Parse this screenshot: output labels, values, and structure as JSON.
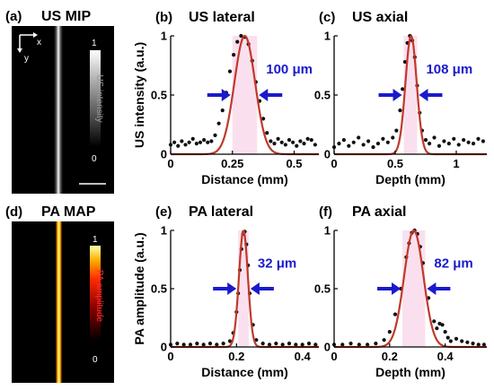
{
  "panels": {
    "a": {
      "tag": "(a)",
      "title": "US MIP",
      "axis_x": "x",
      "axis_y": "y",
      "colorbar_label": "US intensity",
      "colorbar_max": "1",
      "colorbar_min": "0"
    },
    "d": {
      "tag": "(d)",
      "title": "PA MAP",
      "colorbar_label": "PA amplitude",
      "colorbar_max": "1",
      "colorbar_min": "0"
    }
  },
  "colors": {
    "fit": "#c0392b",
    "band": "#f6c6e0",
    "arrow": "#1a1acd",
    "annotation": "#1a1acd",
    "points": "#111111"
  },
  "chart_data": [
    {
      "id": "b",
      "type": "scatter",
      "tag": "(b)",
      "title": "US lateral",
      "xlabel": "Distance (mm)",
      "ylabel": "US intensity (a.u.)",
      "xlim": [
        0,
        0.6
      ],
      "ylim": [
        0,
        1
      ],
      "xticks": [
        0,
        0.25,
        0.5
      ],
      "xtick_labels": [
        "0",
        "0.25",
        "0.5"
      ],
      "yticks": [
        0,
        0.5,
        1
      ],
      "ytick_labels": [
        "0",
        "0.5",
        "1"
      ],
      "annotation": "100 μm",
      "fwhm": [
        0.25,
        0.35
      ],
      "fit": {
        "type": "gaussian",
        "center": 0.3,
        "sigma": 0.042,
        "amplitude": 1,
        "offset": 0.0
      },
      "points_x": [
        0.0,
        0.015,
        0.03,
        0.045,
        0.06,
        0.075,
        0.09,
        0.105,
        0.12,
        0.135,
        0.15,
        0.165,
        0.18,
        0.195,
        0.21,
        0.225,
        0.24,
        0.255,
        0.27,
        0.285,
        0.3,
        0.315,
        0.33,
        0.345,
        0.36,
        0.375,
        0.39,
        0.405,
        0.42,
        0.435,
        0.45,
        0.465,
        0.48,
        0.495,
        0.51,
        0.525,
        0.54,
        0.555,
        0.57,
        0.585
      ],
      "points_y": [
        0.08,
        0.1,
        0.07,
        0.11,
        0.08,
        0.1,
        0.13,
        0.09,
        0.1,
        0.12,
        0.1,
        0.11,
        0.16,
        0.26,
        0.37,
        0.52,
        0.7,
        0.84,
        0.95,
        1.0,
        0.99,
        0.93,
        0.79,
        0.61,
        0.45,
        0.3,
        0.18,
        0.11,
        0.09,
        0.13,
        0.1,
        0.08,
        0.12,
        0.1,
        0.07,
        0.11,
        0.09,
        0.13,
        0.12,
        0.08
      ]
    },
    {
      "id": "c",
      "type": "scatter",
      "tag": "(c)",
      "title": "US axial",
      "xlabel": "Depth (mm)",
      "ylabel": "",
      "xlim": [
        0,
        1.25
      ],
      "ylim": [
        0,
        1
      ],
      "xticks": [
        0,
        0.5,
        1
      ],
      "xtick_labels": [
        "0",
        "0.5",
        "1"
      ],
      "yticks": [
        0,
        0.5,
        1
      ],
      "ytick_labels": [
        "0",
        "0.5",
        "1"
      ],
      "annotation": "108 μm",
      "fwhm": [
        0.57,
        0.68
      ],
      "fit": {
        "type": "gaussian",
        "center": 0.63,
        "sigma": 0.046,
        "amplitude": 1,
        "offset": 0.0
      },
      "points_x": [
        0.0,
        0.04,
        0.08,
        0.12,
        0.16,
        0.2,
        0.24,
        0.28,
        0.32,
        0.36,
        0.4,
        0.44,
        0.48,
        0.51,
        0.54,
        0.56,
        0.58,
        0.6,
        0.62,
        0.64,
        0.66,
        0.68,
        0.7,
        0.72,
        0.75,
        0.78,
        0.82,
        0.86,
        0.9,
        0.94,
        0.98,
        1.02,
        1.06,
        1.1,
        1.14,
        1.18,
        1.22
      ],
      "points_y": [
        0.06,
        0.09,
        0.12,
        0.07,
        0.1,
        0.14,
        0.08,
        0.11,
        0.06,
        0.09,
        0.13,
        0.1,
        0.14,
        0.2,
        0.37,
        0.55,
        0.78,
        0.94,
        1.0,
        0.96,
        0.82,
        0.58,
        0.35,
        0.2,
        0.12,
        0.09,
        0.14,
        0.07,
        0.11,
        0.09,
        0.13,
        0.08,
        0.12,
        0.1,
        0.09,
        0.13,
        0.11
      ]
    },
    {
      "id": "e",
      "type": "scatter",
      "tag": "(e)",
      "title": "PA lateral",
      "xlabel": "Distance (mm)",
      "ylabel": "PA amplitude (a.u.)",
      "xlim": [
        0,
        0.45
      ],
      "ylim": [
        0,
        1
      ],
      "xticks": [
        0,
        0.2,
        0.4
      ],
      "xtick_labels": [
        "0",
        "0.2",
        "0.4"
      ],
      "yticks": [
        0,
        0.5,
        1
      ],
      "ytick_labels": [
        "0",
        "0.5",
        "1"
      ],
      "annotation": "32 μm",
      "fwhm": [
        0.205,
        0.237
      ],
      "fit": {
        "type": "gaussian",
        "center": 0.221,
        "sigma": 0.0136,
        "amplitude": 1,
        "offset": 0.0
      },
      "points_x": [
        0.0,
        0.02,
        0.04,
        0.06,
        0.08,
        0.1,
        0.12,
        0.14,
        0.16,
        0.18,
        0.19,
        0.2,
        0.205,
        0.21,
        0.215,
        0.22,
        0.225,
        0.23,
        0.235,
        0.24,
        0.25,
        0.26,
        0.28,
        0.3,
        0.32,
        0.34,
        0.36,
        0.38,
        0.4,
        0.42,
        0.44
      ],
      "points_y": [
        0.02,
        0.03,
        0.02,
        0.02,
        0.03,
        0.02,
        0.03,
        0.02,
        0.03,
        0.05,
        0.12,
        0.3,
        0.46,
        0.66,
        0.84,
        0.97,
        0.99,
        0.88,
        0.7,
        0.46,
        0.19,
        0.06,
        0.03,
        0.02,
        0.03,
        0.02,
        0.03,
        0.02,
        0.02,
        0.03,
        0.02
      ]
    },
    {
      "id": "f",
      "type": "scatter",
      "tag": "(f)",
      "title": "PA axial",
      "xlabel": "Depth (mm)",
      "ylabel": "",
      "xlim": [
        0,
        0.55
      ],
      "ylim": [
        0,
        1
      ],
      "xticks": [
        0,
        0.2,
        0.4
      ],
      "xtick_labels": [
        "0",
        "0.2",
        "0.4"
      ],
      "yticks": [
        0,
        0.5,
        1
      ],
      "ytick_labels": [
        "0",
        "0.5",
        "1"
      ],
      "annotation": "82 μm",
      "fwhm": [
        0.246,
        0.328
      ],
      "fit": {
        "type": "gaussian",
        "center": 0.287,
        "sigma": 0.035,
        "amplitude": 1,
        "offset": 0.0
      },
      "points_x": [
        0.0,
        0.03,
        0.06,
        0.09,
        0.12,
        0.15,
        0.18,
        0.2,
        0.22,
        0.24,
        0.26,
        0.27,
        0.28,
        0.29,
        0.3,
        0.31,
        0.32,
        0.34,
        0.36,
        0.37,
        0.38,
        0.39,
        0.4,
        0.41,
        0.42,
        0.44,
        0.46,
        0.48,
        0.5,
        0.52,
        0.54
      ],
      "points_y": [
        0.02,
        0.02,
        0.03,
        0.02,
        0.02,
        0.03,
        0.06,
        0.13,
        0.28,
        0.5,
        0.77,
        0.89,
        0.98,
        1.0,
        0.97,
        0.86,
        0.72,
        0.42,
        0.22,
        0.16,
        0.2,
        0.19,
        0.13,
        0.08,
        0.05,
        0.07,
        0.05,
        0.04,
        0.03,
        0.02,
        0.02
      ]
    }
  ]
}
